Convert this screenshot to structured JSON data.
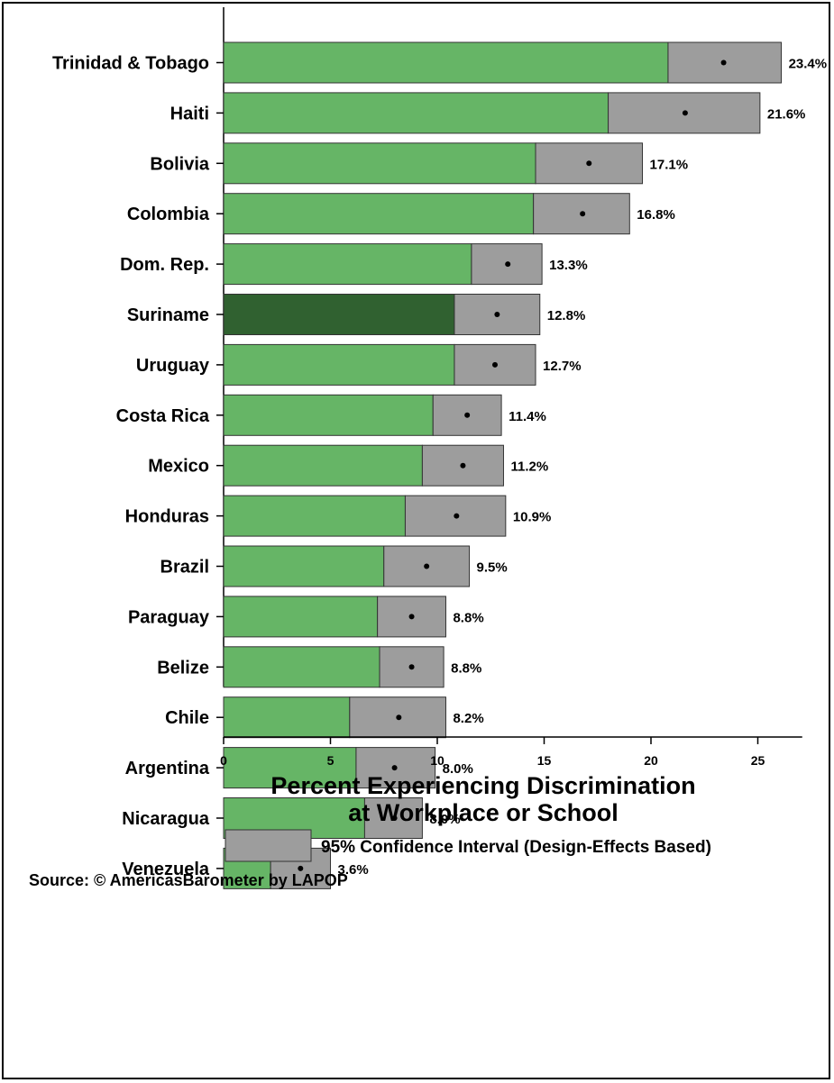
{
  "chart_data": {
    "type": "bar",
    "orientation": "horizontal",
    "categories": [
      "Trinidad & Tobago",
      "Haiti",
      "Bolivia",
      "Colombia",
      "Dom. Rep.",
      "Suriname",
      "Uruguay",
      "Costa Rica",
      "Mexico",
      "Honduras",
      "Brazil",
      "Paraguay",
      "Belize",
      "Chile",
      "Argentina",
      "Nicaragua",
      "Venezuela"
    ],
    "values": [
      23.4,
      21.6,
      17.1,
      16.8,
      13.3,
      12.8,
      12.7,
      11.4,
      11.2,
      10.9,
      9.5,
      8.8,
      8.8,
      8.2,
      8.0,
      8.0,
      3.6
    ],
    "value_labels": [
      "23.4%",
      "21.6%",
      "17.1%",
      "16.8%",
      "13.3%",
      "12.8%",
      "12.7%",
      "11.4%",
      "11.2%",
      "10.9%",
      "9.5%",
      "8.8%",
      "8.8%",
      "8.2%",
      "8.0%",
      "8.0%",
      "3.6%"
    ],
    "ci_low": [
      20.8,
      18.0,
      14.6,
      14.5,
      11.6,
      10.8,
      10.8,
      9.8,
      9.3,
      8.5,
      7.5,
      7.2,
      7.3,
      5.9,
      6.2,
      6.6,
      2.2
    ],
    "ci_high": [
      26.1,
      25.1,
      19.6,
      19.0,
      14.9,
      14.8,
      14.6,
      13.0,
      13.1,
      13.2,
      11.5,
      10.4,
      10.3,
      10.4,
      9.9,
      9.3,
      5.0
    ],
    "highlight": "Suriname",
    "xlim": [
      0,
      27.5
    ],
    "xticks": [
      0,
      5,
      10,
      15,
      20,
      25
    ],
    "xlabel_line1": "Percent Experiencing Discrimination",
    "xlabel_line2": "at Workplace or School",
    "legend": "95% Confidence Interval (Design-Effects Based)",
    "source": "Source: © AmericasBarometer by  LAPOP",
    "colors": {
      "bar": "#66b566",
      "highlight_bar": "#306130",
      "ci": "#9d9d9d"
    }
  }
}
